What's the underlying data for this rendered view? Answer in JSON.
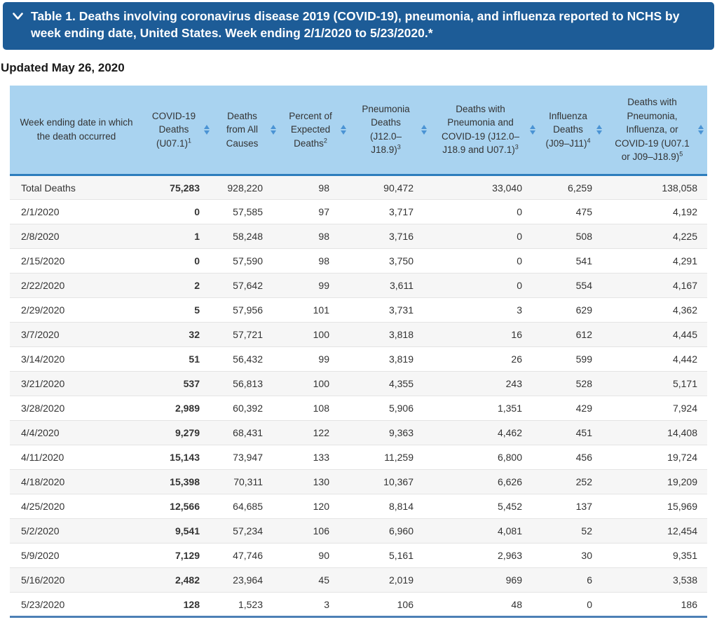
{
  "accordion": {
    "chevron_icon": "chevron-down",
    "state": "expanded"
  },
  "updated_text": "Updated May 26, 2020",
  "colors": {
    "title_bar_bg": "#1d5c97",
    "title_bar_text": "#ffffff",
    "header_bg": "#a9d3f0",
    "header_text": "#333333",
    "sort_icon": "#4a93d4",
    "header_bottom_rule": "#2d7dbd",
    "table_bottom_rule": "#4d80b5",
    "alt_row_bg": "#f6f6f6",
    "row_divider": "#e4e4e4",
    "body_text": "#333333"
  },
  "chart_data": {
    "type": "table",
    "title": "Table 1. Deaths involving coronavirus disease 2019 (COVID-19), pneumonia, and influenza reported to NCHS by week ending date, United States. Week ending 2/1/2020 to 5/23/2020.*",
    "columns": [
      {
        "id": "week-ending-date",
        "label": "Week ending date in which the death occurred",
        "sup": "",
        "sortable": false
      },
      {
        "id": "covid-19-deaths",
        "label": "COVID-19 Deaths (U07.1)",
        "sup": "1",
        "sortable": true
      },
      {
        "id": "deaths-from-all-causes",
        "label": "Deaths from All Causes",
        "sup": "",
        "sortable": true
      },
      {
        "id": "percent-of-expected-deaths",
        "label": "Percent of Expected Deaths",
        "sup": "2",
        "sortable": true
      },
      {
        "id": "pneumonia-deaths",
        "label": "Pneumonia Deaths (J12.0–J18.9)",
        "sup": "3",
        "sortable": true
      },
      {
        "id": "deaths-with-pneumonia-and-covid-19",
        "label": "Deaths with Pneumonia and COVID-19 (J12.0–J18.9 and U07.1)",
        "sup": "3",
        "sortable": true
      },
      {
        "id": "influenza-deaths",
        "label": "Influenza Deaths (J09–J11)",
        "sup": "4",
        "sortable": true
      },
      {
        "id": "deaths-with-pneumonia-influenza-or-covid-19",
        "label": "Deaths with Pneumonia, Influenza, or COVID-19 (U07.1 or J09–J18.9)",
        "sup": "5",
        "sortable": true
      }
    ],
    "rows": [
      [
        "Total Deaths",
        "75,283",
        "928,220",
        "98",
        "90,472",
        "33,040",
        "6,259",
        "138,058"
      ],
      [
        "2/1/2020",
        "0",
        "57,585",
        "97",
        "3,717",
        "0",
        "475",
        "4,192"
      ],
      [
        "2/8/2020",
        "1",
        "58,248",
        "98",
        "3,716",
        "0",
        "508",
        "4,225"
      ],
      [
        "2/15/2020",
        "0",
        "57,590",
        "98",
        "3,750",
        "0",
        "541",
        "4,291"
      ],
      [
        "2/22/2020",
        "2",
        "57,642",
        "99",
        "3,611",
        "0",
        "554",
        "4,167"
      ],
      [
        "2/29/2020",
        "5",
        "57,956",
        "101",
        "3,731",
        "3",
        "629",
        "4,362"
      ],
      [
        "3/7/2020",
        "32",
        "57,721",
        "100",
        "3,818",
        "16",
        "612",
        "4,445"
      ],
      [
        "3/14/2020",
        "51",
        "56,432",
        "99",
        "3,819",
        "26",
        "599",
        "4,442"
      ],
      [
        "3/21/2020",
        "537",
        "56,813",
        "100",
        "4,355",
        "243",
        "528",
        "5,171"
      ],
      [
        "3/28/2020",
        "2,989",
        "60,392",
        "108",
        "5,906",
        "1,351",
        "429",
        "7,924"
      ],
      [
        "4/4/2020",
        "9,279",
        "68,431",
        "122",
        "9,363",
        "4,462",
        "451",
        "14,408"
      ],
      [
        "4/11/2020",
        "15,143",
        "73,947",
        "133",
        "11,259",
        "6,800",
        "456",
        "19,724"
      ],
      [
        "4/18/2020",
        "15,398",
        "70,311",
        "130",
        "10,367",
        "6,626",
        "252",
        "19,209"
      ],
      [
        "4/25/2020",
        "12,566",
        "64,685",
        "120",
        "8,814",
        "5,452",
        "137",
        "15,969"
      ],
      [
        "5/2/2020",
        "9,541",
        "57,234",
        "106",
        "6,960",
        "4,081",
        "52",
        "12,454"
      ],
      [
        "5/9/2020",
        "7,129",
        "47,746",
        "90",
        "5,161",
        "2,963",
        "30",
        "9,351"
      ],
      [
        "5/16/2020",
        "2,482",
        "23,964",
        "45",
        "2,019",
        "969",
        "6",
        "3,538"
      ],
      [
        "5/23/2020",
        "128",
        "1,523",
        "3",
        "106",
        "48",
        "0",
        "186"
      ]
    ]
  }
}
